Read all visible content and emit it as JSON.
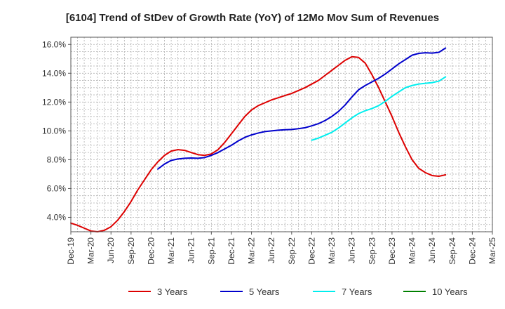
{
  "chart_data": {
    "type": "line",
    "title": "[6104]  Trend of StDev of Growth Rate (YoY) of 12Mo Mov Sum of Revenues",
    "xlabel": "",
    "ylabel": "",
    "ylim": [
      3.0,
      16.5
    ],
    "y_ticks": [
      4.0,
      6.0,
      8.0,
      10.0,
      12.0,
      14.0,
      16.0
    ],
    "y_tick_labels": [
      "4.0%",
      "6.0%",
      "8.0%",
      "10.0%",
      "12.0%",
      "14.0%",
      "16.0%"
    ],
    "x_ticks": [
      "Dec-19",
      "Mar-20",
      "Jun-20",
      "Sep-20",
      "Dec-20",
      "Mar-21",
      "Jun-21",
      "Sep-21",
      "Dec-21",
      "Mar-22",
      "Jun-22",
      "Sep-22",
      "Dec-22",
      "Mar-23",
      "Jun-23",
      "Sep-23",
      "Dec-23",
      "Mar-24",
      "Jun-24",
      "Sep-24",
      "Dec-24",
      "Mar-25"
    ],
    "grid": true,
    "legend_position": "bottom",
    "series": [
      {
        "name": "3 Years",
        "color": "#dd0000",
        "points": [
          [
            0,
            3.6
          ],
          [
            1,
            3.45
          ],
          [
            2,
            3.25
          ],
          [
            3,
            3.05
          ],
          [
            4,
            3.0
          ],
          [
            5,
            3.1
          ],
          [
            6,
            3.35
          ],
          [
            7,
            3.8
          ],
          [
            8,
            4.4
          ],
          [
            9,
            5.1
          ],
          [
            10,
            5.9
          ],
          [
            11,
            6.6
          ],
          [
            12,
            7.3
          ],
          [
            13,
            7.85
          ],
          [
            14,
            8.3
          ],
          [
            15,
            8.6
          ],
          [
            16,
            8.7
          ],
          [
            17,
            8.65
          ],
          [
            18,
            8.5
          ],
          [
            19,
            8.35
          ],
          [
            20,
            8.3
          ],
          [
            21,
            8.4
          ],
          [
            22,
            8.7
          ],
          [
            23,
            9.2
          ],
          [
            24,
            9.8
          ],
          [
            25,
            10.4
          ],
          [
            26,
            11.0
          ],
          [
            27,
            11.45
          ],
          [
            28,
            11.75
          ],
          [
            29,
            11.95
          ],
          [
            30,
            12.15
          ],
          [
            31,
            12.3
          ],
          [
            32,
            12.45
          ],
          [
            33,
            12.6
          ],
          [
            34,
            12.8
          ],
          [
            35,
            13.0
          ],
          [
            36,
            13.25
          ],
          [
            37,
            13.5
          ],
          [
            38,
            13.85
          ],
          [
            39,
            14.2
          ],
          [
            40,
            14.55
          ],
          [
            41,
            14.9
          ],
          [
            42,
            15.15
          ],
          [
            43,
            15.1
          ],
          [
            44,
            14.7
          ],
          [
            45,
            13.9
          ],
          [
            46,
            13.0
          ],
          [
            47,
            12.0
          ],
          [
            48,
            11.0
          ],
          [
            49,
            9.9
          ],
          [
            50,
            8.9
          ],
          [
            51,
            8.0
          ],
          [
            52,
            7.4
          ],
          [
            53,
            7.1
          ],
          [
            54,
            6.9
          ],
          [
            55,
            6.85
          ],
          [
            56,
            6.95
          ]
        ]
      },
      {
        "name": "5 Years",
        "color": "#0000cc",
        "points": [
          [
            13,
            7.35
          ],
          [
            14,
            7.7
          ],
          [
            15,
            7.95
          ],
          [
            16,
            8.05
          ],
          [
            17,
            8.1
          ],
          [
            18,
            8.12
          ],
          [
            19,
            8.1
          ],
          [
            20,
            8.15
          ],
          [
            21,
            8.3
          ],
          [
            22,
            8.5
          ],
          [
            23,
            8.75
          ],
          [
            24,
            9.0
          ],
          [
            25,
            9.3
          ],
          [
            26,
            9.55
          ],
          [
            27,
            9.72
          ],
          [
            28,
            9.85
          ],
          [
            29,
            9.95
          ],
          [
            30,
            10.0
          ],
          [
            31,
            10.05
          ],
          [
            32,
            10.08
          ],
          [
            33,
            10.1
          ],
          [
            34,
            10.15
          ],
          [
            35,
            10.22
          ],
          [
            36,
            10.35
          ],
          [
            37,
            10.5
          ],
          [
            38,
            10.72
          ],
          [
            39,
            11.0
          ],
          [
            40,
            11.35
          ],
          [
            41,
            11.8
          ],
          [
            42,
            12.35
          ],
          [
            43,
            12.85
          ],
          [
            44,
            13.15
          ],
          [
            45,
            13.4
          ],
          [
            46,
            13.65
          ],
          [
            47,
            13.95
          ],
          [
            48,
            14.3
          ],
          [
            49,
            14.65
          ],
          [
            50,
            14.95
          ],
          [
            51,
            15.25
          ],
          [
            52,
            15.38
          ],
          [
            53,
            15.42
          ],
          [
            54,
            15.4
          ],
          [
            55,
            15.45
          ],
          [
            56,
            15.75
          ]
        ]
      },
      {
        "name": "7 Years",
        "color": "#00eeee",
        "points": [
          [
            36,
            9.35
          ],
          [
            37,
            9.5
          ],
          [
            38,
            9.7
          ],
          [
            39,
            9.9
          ],
          [
            40,
            10.2
          ],
          [
            41,
            10.55
          ],
          [
            42,
            10.9
          ],
          [
            43,
            11.2
          ],
          [
            44,
            11.4
          ],
          [
            45,
            11.55
          ],
          [
            46,
            11.75
          ],
          [
            47,
            12.05
          ],
          [
            48,
            12.4
          ],
          [
            49,
            12.7
          ],
          [
            50,
            13.0
          ],
          [
            51,
            13.15
          ],
          [
            52,
            13.25
          ],
          [
            53,
            13.3
          ],
          [
            54,
            13.35
          ],
          [
            55,
            13.45
          ],
          [
            56,
            13.75
          ]
        ]
      },
      {
        "name": "10 Years",
        "color": "#008000",
        "points": []
      }
    ]
  }
}
